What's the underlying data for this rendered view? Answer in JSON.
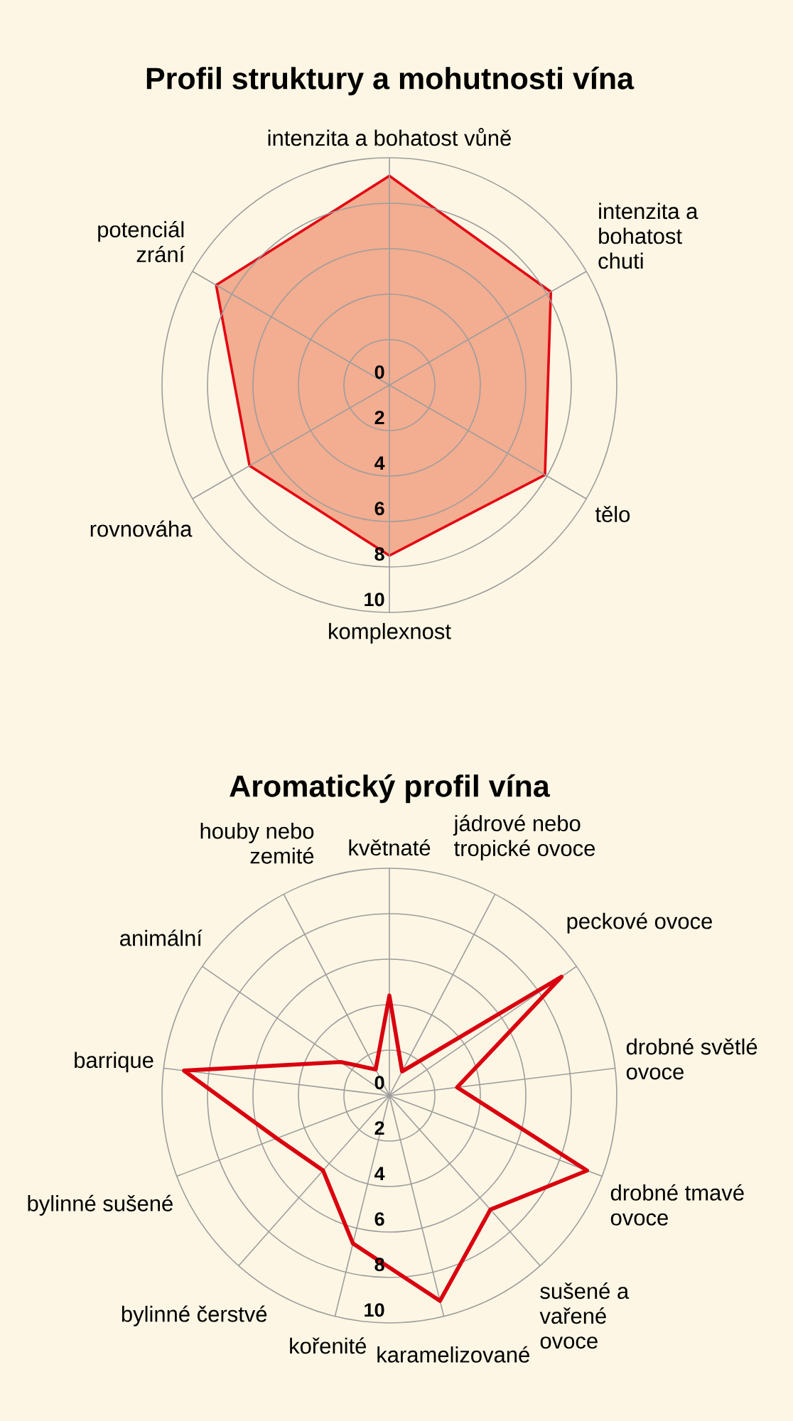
{
  "chart_data": [
    {
      "type": "radar",
      "title": "Profil struktury a mohutnosti vína",
      "categories": [
        "intenzita a bohatost vůně",
        "intenzita a bohatost chuti",
        "tělo",
        "komplexnost",
        "rovnováha",
        "potenciál zrání"
      ],
      "series": [
        {
          "type": "area",
          "color": "#e30613",
          "values": [
            9.2,
            8.2,
            7.9,
            7.5,
            7.1,
            8.8
          ]
        }
      ],
      "ylim": [
        0,
        10
      ],
      "yticks": [
        0,
        2,
        4,
        6,
        8,
        10
      ],
      "grid": true
    },
    {
      "type": "radar",
      "title": "Aromatický profil vína",
      "categories": [
        "květnaté",
        "jádrové nebo tropické ovoce",
        "peckové ovoce",
        "drobné světlé ovoce",
        "drobné tmavé ovoce",
        "sušené a vařené ovoce",
        "karamelizované",
        "kořenité",
        "bylinné čerstvé",
        "bylinné sušené",
        "barrique",
        "animální",
        "houby nebo zemité"
      ],
      "series": [
        {
          "color": "#d9000f",
          "values": [
            4.4,
            1.2,
            9.2,
            3.0,
            9.3,
            6.7,
            9.3,
            6.7,
            4.4,
            5.3,
            9.1,
            2.6,
            1.3
          ]
        }
      ],
      "ylim": [
        0,
        10
      ],
      "yticks": [
        0,
        2,
        4,
        6,
        8,
        10
      ],
      "grid": true
    }
  ]
}
